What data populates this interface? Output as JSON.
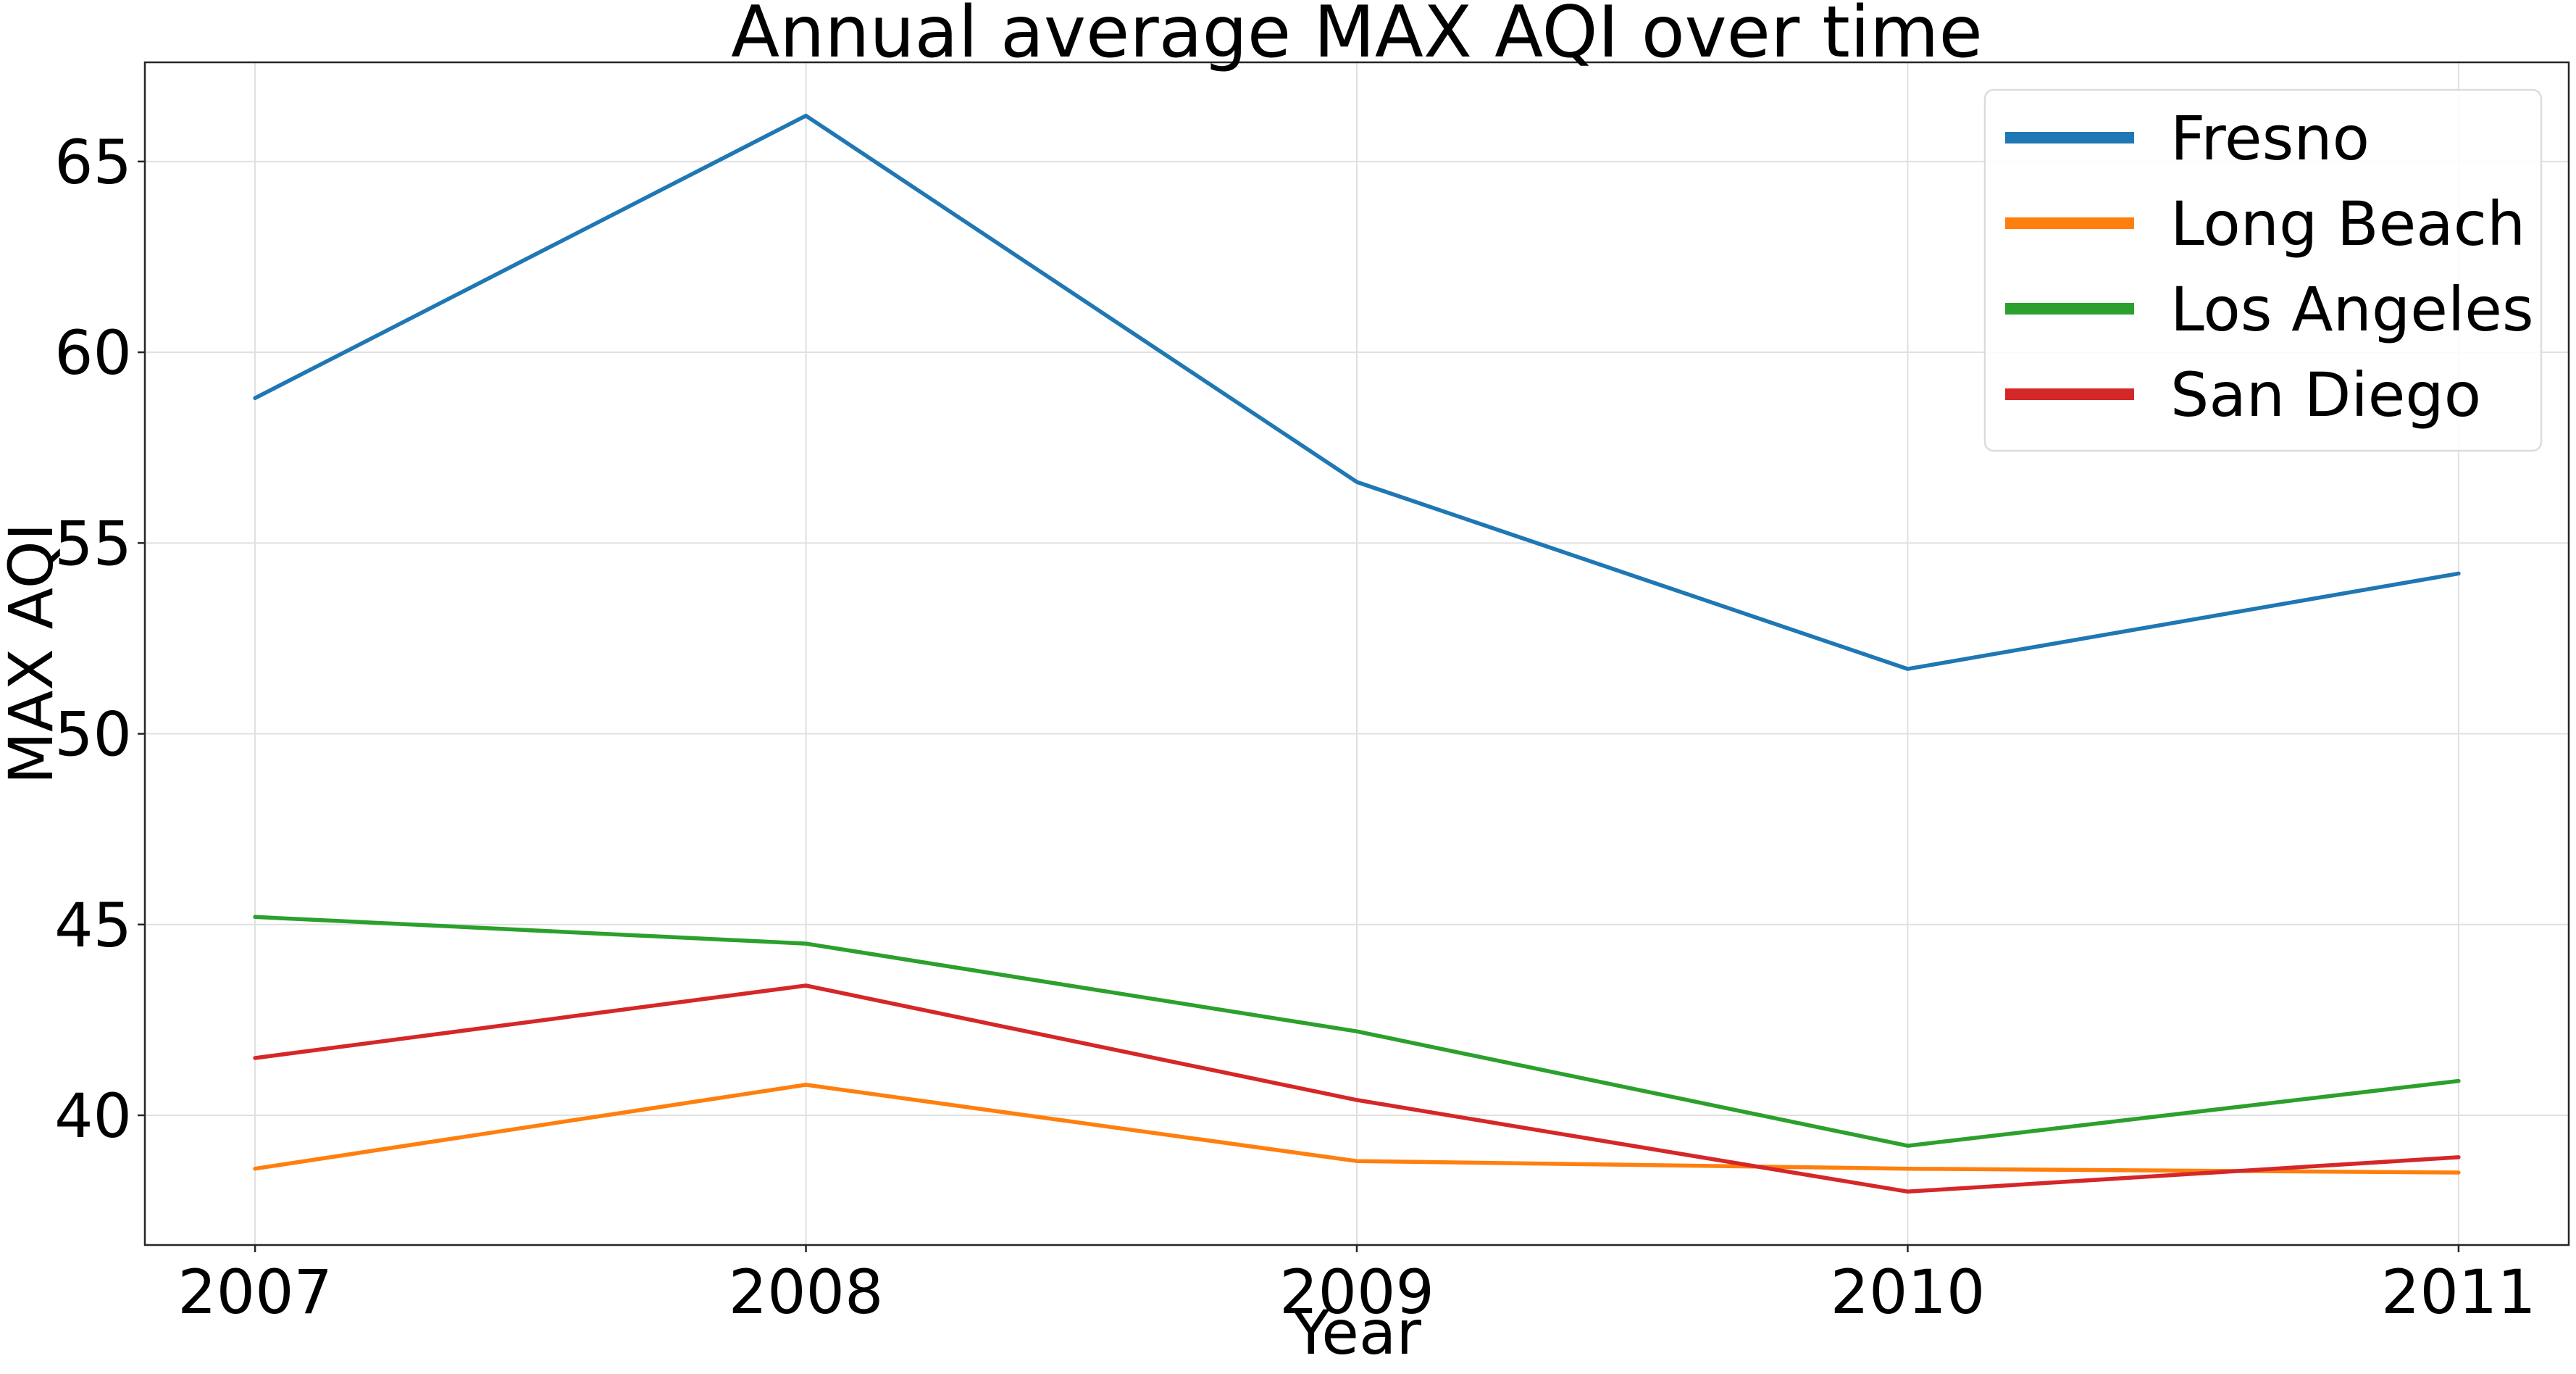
{
  "chart_data": {
    "type": "line",
    "title": "Annual average MAX AQI over time",
    "xlabel": "Year",
    "ylabel": "MAX AQI",
    "x": [
      2007,
      2008,
      2009,
      2010,
      2011
    ],
    "x_tick_labels": [
      "2007",
      "2008",
      "2009",
      "2010",
      "2011"
    ],
    "xlim": [
      2006.8,
      2011.2
    ],
    "ylim": [
      36.6,
      67.6
    ],
    "y_ticks": [
      40,
      45,
      50,
      55,
      60,
      65
    ],
    "y_tick_labels": [
      "40",
      "45",
      "50",
      "55",
      "60",
      "65"
    ],
    "grid": true,
    "legend_position": "top-right",
    "series": [
      {
        "name": "Fresno",
        "color": "#1f77b4",
        "values": [
          58.8,
          66.2,
          56.6,
          51.7,
          54.2
        ]
      },
      {
        "name": "Long Beach",
        "color": "#ff7f0e",
        "values": [
          38.6,
          40.8,
          38.8,
          38.6,
          38.5
        ]
      },
      {
        "name": "Los Angeles",
        "color": "#2ca02c",
        "values": [
          45.2,
          44.5,
          42.2,
          39.2,
          40.9
        ]
      },
      {
        "name": "San Diego",
        "color": "#d62728",
        "values": [
          41.5,
          43.4,
          40.4,
          38.0,
          38.9
        ]
      }
    ]
  }
}
